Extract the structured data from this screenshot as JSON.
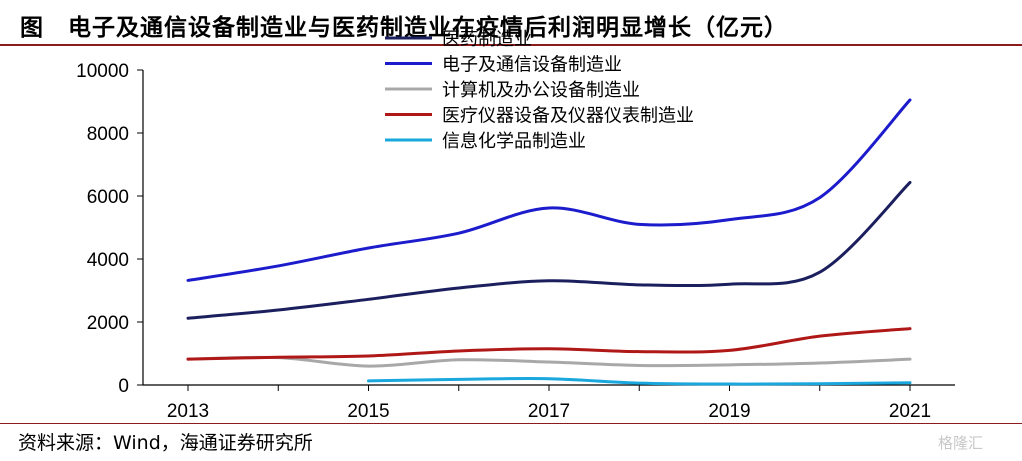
{
  "header": {
    "title": "图　电子及通信设备制造业与医药制造业在疫情后利润明显增长（亿元）"
  },
  "footer": {
    "source": "资料来源：Wind，海通证券研究所",
    "watermark": "格隆汇"
  },
  "chart_data": {
    "type": "line",
    "title": "电子及通信设备制造业与医药制造业在疫情后利润明显增长（亿元）",
    "xlabel": "",
    "ylabel": "",
    "x_ticks": [
      "2013",
      "2015",
      "2017",
      "2019",
      "2021"
    ],
    "y_ticks": [
      "0",
      "2000",
      "4000",
      "6000",
      "8000",
      "10000"
    ],
    "xlim": [
      2013,
      2021
    ],
    "ylim": [
      0,
      10000
    ],
    "grid": false,
    "legend_position": "top-center",
    "series": [
      {
        "name": "医药制造业",
        "color": "#1b1f5e",
        "points": [
          [
            2013,
            2120
          ],
          [
            2014,
            2380
          ],
          [
            2015,
            2720
          ],
          [
            2016,
            3080
          ],
          [
            2017,
            3310
          ],
          [
            2018,
            3180
          ],
          [
            2019,
            3200
          ],
          [
            2020,
            3580
          ],
          [
            2021,
            6430
          ]
        ]
      },
      {
        "name": "电子及通信设备制造业",
        "color": "#1c1ccc",
        "points": [
          [
            2013,
            3320
          ],
          [
            2014,
            3780
          ],
          [
            2015,
            4350
          ],
          [
            2016,
            4820
          ],
          [
            2017,
            5620
          ],
          [
            2018,
            5100
          ],
          [
            2019,
            5250
          ],
          [
            2020,
            5950
          ],
          [
            2021,
            9050
          ]
        ]
      },
      {
        "name": "计算机及办公设备制造业",
        "color": "#a8a8a8",
        "points": [
          [
            2013,
            820
          ],
          [
            2014,
            870
          ],
          [
            2015,
            600
          ],
          [
            2016,
            800
          ],
          [
            2017,
            730
          ],
          [
            2018,
            620
          ],
          [
            2019,
            640
          ],
          [
            2020,
            700
          ],
          [
            2021,
            820
          ]
        ]
      },
      {
        "name": "医疗仪器设备及仪器仪表制造业",
        "color": "#b01818",
        "points": [
          [
            2013,
            820
          ],
          [
            2014,
            880
          ],
          [
            2015,
            920
          ],
          [
            2016,
            1080
          ],
          [
            2017,
            1150
          ],
          [
            2018,
            1060
          ],
          [
            2019,
            1100
          ],
          [
            2020,
            1550
          ],
          [
            2021,
            1790
          ]
        ]
      },
      {
        "name": "信息化学品制造业",
        "color": "#1aa7dd",
        "points": [
          [
            2015,
            130
          ],
          [
            2016,
            180
          ],
          [
            2017,
            200
          ],
          [
            2018,
            60
          ],
          [
            2019,
            30
          ],
          [
            2020,
            40
          ],
          [
            2021,
            70
          ]
        ]
      }
    ]
  }
}
